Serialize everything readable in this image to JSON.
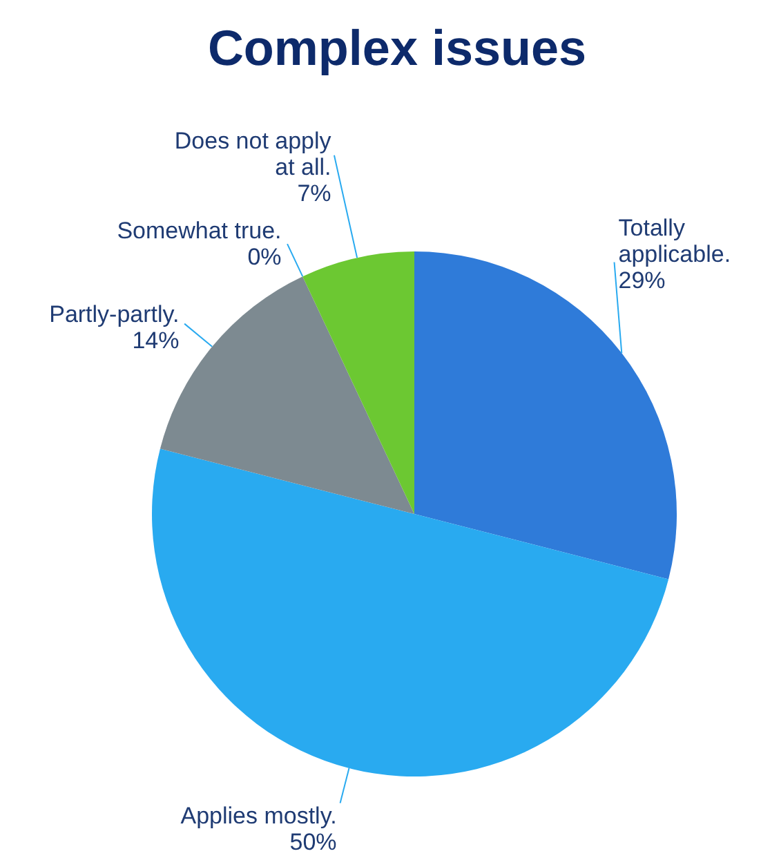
{
  "chart_data": {
    "type": "pie",
    "title": "Complex issues",
    "categories": [
      "Totally applicable.",
      "Applies mostly.",
      "Partly-partly.",
      "Somewhat true.",
      "Does not apply at all."
    ],
    "values": [
      29,
      50,
      14,
      0,
      7
    ],
    "value_labels": [
      "29%",
      "50%",
      "14%",
      "0%",
      "7%"
    ],
    "colors": [
      "#2f7bd9",
      "#29aaf0",
      "#7d8a91",
      "#a9b3bb",
      "#6cc832"
    ]
  }
}
